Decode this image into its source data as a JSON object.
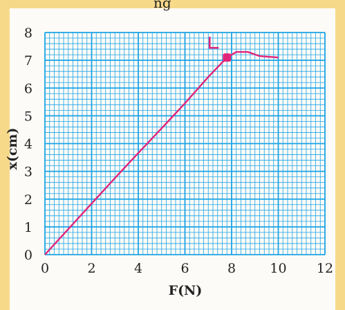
{
  "header_fragment": "ng",
  "chart_data": {
    "type": "line",
    "xlabel": "F(N)",
    "ylabel": "x(cm)",
    "xlim": [
      0,
      12
    ],
    "ylim": [
      0,
      8
    ],
    "xticks": [
      "0",
      "2",
      "4",
      "6",
      "8",
      "10",
      "12"
    ],
    "yticks": [
      "0",
      "1",
      "2",
      "3",
      "4",
      "5",
      "6",
      "7",
      "8"
    ],
    "grid": true,
    "x": [
      0,
      1,
      2,
      3,
      4,
      5,
      6,
      7,
      7.8,
      8.2,
      8.7,
      9.2,
      10
    ],
    "y": [
      0,
      0.92,
      1.84,
      2.76,
      3.66,
      4.55,
      5.45,
      6.4,
      7.1,
      7.3,
      7.3,
      7.15,
      7.1
    ],
    "annotations": [
      {
        "label": "L",
        "x": 7.8,
        "y": 7.1
      }
    ],
    "colors": {
      "line": "#e0247a",
      "grid": "#1aa3e6",
      "point": "#e0247a",
      "background_band": "#f7d98a"
    }
  }
}
